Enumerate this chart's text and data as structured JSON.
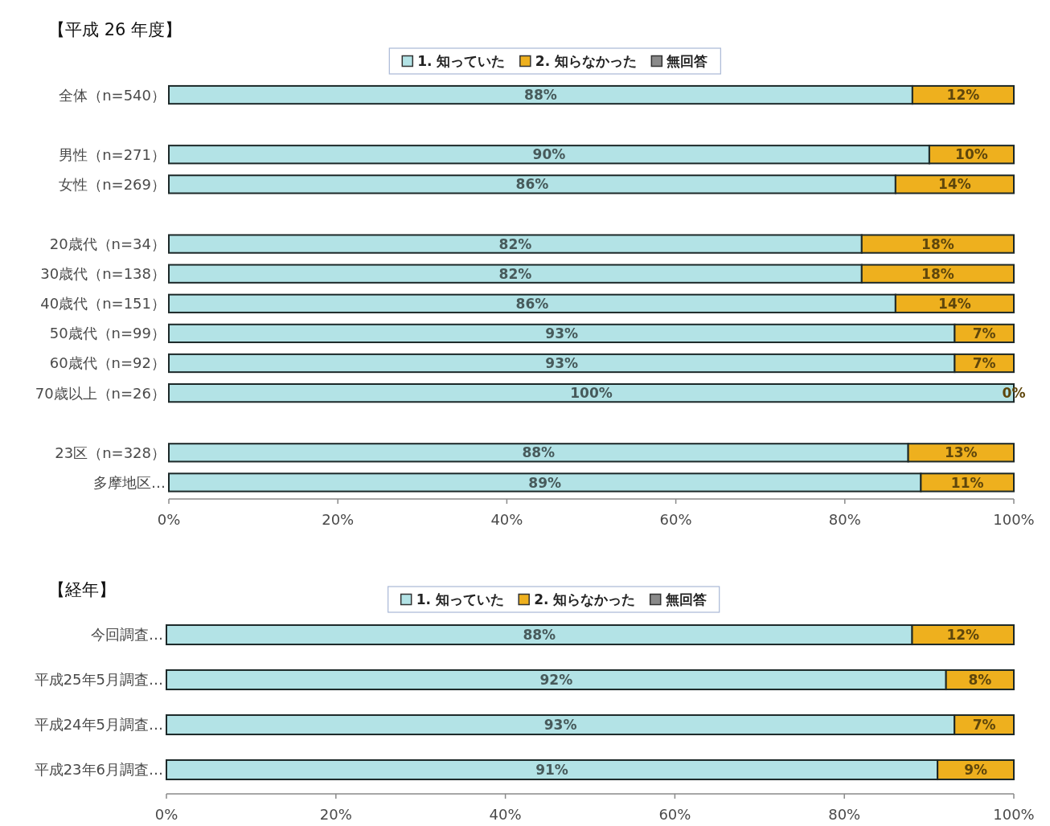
{
  "chart_data": [
    {
      "type": "bar",
      "orientation": "horizontal",
      "stacked": true,
      "title": "【平成 26 年度】",
      "legend": "top",
      "categories": [
        "全体（n=540）",
        null,
        "男性（n=271）",
        "女性（n=269）",
        null,
        "20歳代（n=34）",
        "30歳代（n=138）",
        "40歳代（n=151）",
        "50歳代（n=99）",
        "60歳代（n=92）",
        "70歳以上（n=26）",
        null,
        "23区（n=328）",
        "多摩地区…"
      ],
      "series": [
        {
          "name": "1. 知っていた",
          "color": "#b3e3e6",
          "values": [
            88,
            null,
            90,
            86,
            null,
            82,
            82,
            86,
            93,
            93,
            100,
            null,
            87.5,
            89
          ],
          "value_labels": [
            "88%",
            null,
            "90%",
            "86%",
            null,
            "82%",
            "82%",
            "86%",
            "93%",
            "93%",
            "100%",
            null,
            "88%",
            "89%"
          ]
        },
        {
          "name": "2. 知らなかった",
          "color": "#eeb01e",
          "values": [
            12,
            null,
            10,
            14,
            null,
            18,
            18,
            14,
            7,
            7,
            0,
            null,
            12.5,
            11
          ],
          "value_labels": [
            "12%",
            null,
            "10%",
            "14%",
            null,
            "18%",
            "18%",
            "14%",
            "7%",
            "7%",
            "0%",
            null,
            "13%",
            "11%"
          ]
        },
        {
          "name": "無回答",
          "color": "#8a8a8a",
          "values": [
            0,
            null,
            0,
            0,
            null,
            0,
            0,
            0,
            0,
            0,
            0,
            null,
            0,
            0
          ]
        }
      ],
      "xlim": [
        0,
        100
      ],
      "xticks": [
        {
          "value": 0,
          "label": "0%"
        },
        {
          "value": 20,
          "label": "20%"
        },
        {
          "value": 40,
          "label": "40%"
        },
        {
          "value": 60,
          "label": "60%"
        },
        {
          "value": 80,
          "label": "80%"
        },
        {
          "value": 100,
          "label": "100%"
        }
      ]
    },
    {
      "type": "bar",
      "orientation": "horizontal",
      "stacked": true,
      "title": "【経年】",
      "legend": "top",
      "categories": [
        "今回調査…",
        "平成25年5月調査…",
        "平成24年5月調査…",
        "平成23年6月調査…"
      ],
      "series": [
        {
          "name": "1. 知っていた",
          "color": "#b3e3e6",
          "values": [
            88,
            92,
            93,
            91
          ],
          "value_labels": [
            "88%",
            "92%",
            "93%",
            "91%"
          ]
        },
        {
          "name": "2. 知らなかった",
          "color": "#eeb01e",
          "values": [
            12,
            8,
            7,
            9
          ],
          "value_labels": [
            "12%",
            "8%",
            "7%",
            "9%"
          ]
        },
        {
          "name": "無回答",
          "color": "#8a8a8a",
          "values": [
            0,
            0,
            0,
            0
          ]
        }
      ],
      "xlim": [
        0,
        100
      ],
      "xticks": [
        {
          "value": 0,
          "label": "0%"
        },
        {
          "value": 20,
          "label": "20%"
        },
        {
          "value": 40,
          "label": "40%"
        },
        {
          "value": 60,
          "label": "60%"
        },
        {
          "value": 80,
          "label": "80%"
        },
        {
          "value": 100,
          "label": "100%"
        }
      ]
    }
  ]
}
